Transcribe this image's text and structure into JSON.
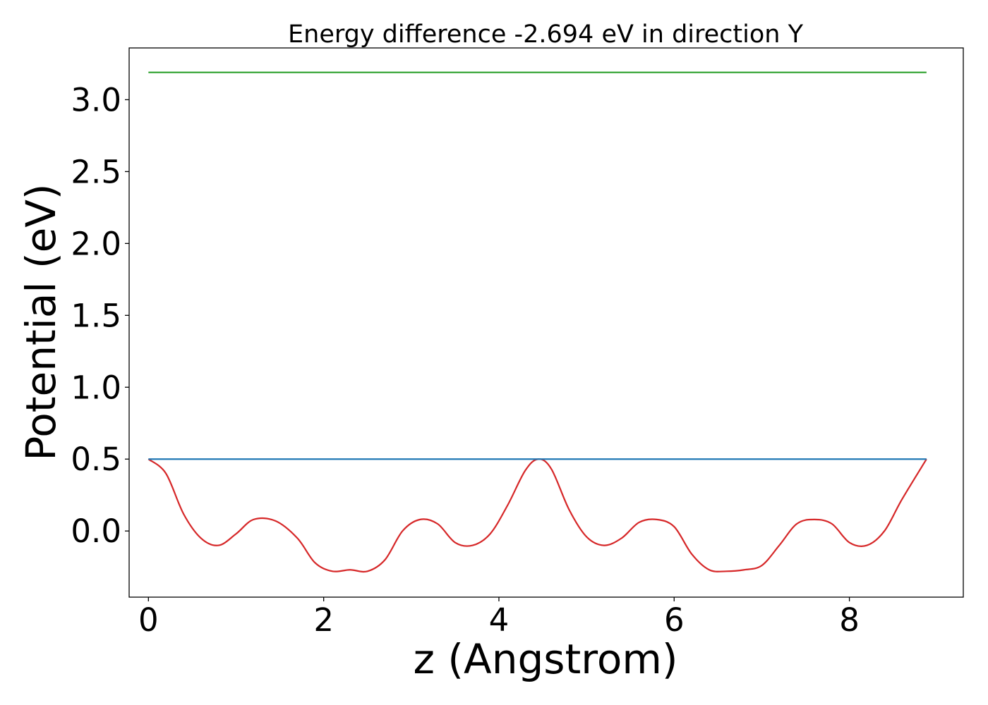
{
  "chart_data": {
    "type": "line",
    "title": "Energy difference -2.694 eV in direction Y",
    "xlabel": "z (Angstrom)",
    "ylabel": "Potential (eV)",
    "xlim": [
      -0.22,
      9.3
    ],
    "ylim": [
      -0.46,
      3.36
    ],
    "xticks": [
      0,
      2,
      4,
      6,
      8
    ],
    "xtick_labels": [
      "0",
      "2",
      "4",
      "6",
      "8"
    ],
    "yticks": [
      0.0,
      0.5,
      1.0,
      1.5,
      2.0,
      2.5,
      3.0
    ],
    "ytick_labels": [
      "0.0",
      "0.5",
      "1.0",
      "1.5",
      "2.0",
      "2.5",
      "3.0"
    ],
    "grid": false,
    "series": [
      {
        "color": "#d62728",
        "x": [
          0.0,
          0.2,
          0.4,
          0.6,
          0.8,
          1.0,
          1.2,
          1.45,
          1.7,
          1.9,
          2.1,
          2.3,
          2.5,
          2.7,
          2.9,
          3.1,
          3.3,
          3.5,
          3.7,
          3.9,
          4.1,
          4.3,
          4.45,
          4.6,
          4.8,
          5.0,
          5.2,
          5.4,
          5.6,
          5.8,
          6.0,
          6.2,
          6.4,
          6.6,
          6.8,
          7.0,
          7.2,
          7.4,
          7.6,
          7.8,
          8.0,
          8.2,
          8.4,
          8.6,
          8.88
        ],
        "values": [
          0.5,
          0.4,
          0.12,
          -0.05,
          -0.1,
          -0.02,
          0.08,
          0.07,
          -0.05,
          -0.22,
          -0.28,
          -0.27,
          -0.28,
          -0.2,
          0.0,
          0.08,
          0.05,
          -0.08,
          -0.1,
          -0.02,
          0.18,
          0.42,
          0.5,
          0.43,
          0.15,
          -0.04,
          -0.1,
          -0.05,
          0.06,
          0.08,
          0.03,
          -0.16,
          -0.27,
          -0.28,
          -0.27,
          -0.24,
          -0.1,
          0.05,
          0.08,
          0.05,
          -0.08,
          -0.1,
          0.0,
          0.22,
          0.5
        ]
      },
      {
        "color": "#1f77b4",
        "x": [
          0.0,
          8.88
        ],
        "values": [
          0.5,
          0.5
        ]
      },
      {
        "color": "#2ca02c",
        "x": [
          0.0,
          8.88
        ],
        "values": [
          3.19,
          3.19
        ]
      }
    ]
  }
}
